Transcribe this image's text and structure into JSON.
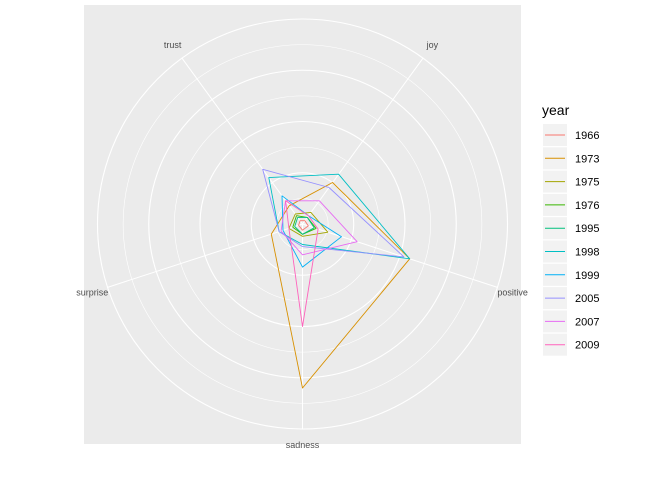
{
  "chart_data": {
    "type": "radar",
    "axes": [
      "joy",
      "positive",
      "sadness",
      "surprise",
      "trust"
    ],
    "rmax": 1,
    "grid": true,
    "legend": {
      "title": "year",
      "position": "right"
    },
    "series": [
      {
        "name": "1966",
        "color": "#F8766D",
        "values": [
          0.02,
          0.03,
          0.03,
          0.02,
          0.02
        ]
      },
      {
        "name": "1973",
        "color": "#D89000",
        "values": [
          0.25,
          0.55,
          0.8,
          0.16,
          0.11
        ]
      },
      {
        "name": "1975",
        "color": "#A3A500",
        "values": [
          0.07,
          0.13,
          0.06,
          0.07,
          0.06
        ]
      },
      {
        "name": "1976",
        "color": "#39B600",
        "values": [
          0.04,
          0.07,
          0.05,
          0.05,
          0.05
        ]
      },
      {
        "name": "1995",
        "color": "#00BF7D",
        "values": [
          0.04,
          0.06,
          0.05,
          0.04,
          0.04
        ]
      },
      {
        "name": "1998",
        "color": "#00BFC4",
        "values": [
          0.3,
          0.55,
          0.1,
          0.12,
          0.28
        ]
      },
      {
        "name": "1999",
        "color": "#00B0F6",
        "values": [
          0.05,
          0.2,
          0.21,
          0.1,
          0.17
        ]
      },
      {
        "name": "2005",
        "color": "#9590FF",
        "values": [
          0.22,
          0.52,
          0.11,
          0.12,
          0.33
        ]
      },
      {
        "name": "2007",
        "color": "#E76BF3",
        "values": [
          0.14,
          0.28,
          0.15,
          0.11,
          0.14
        ]
      },
      {
        "name": "2009",
        "color": "#FF62BC",
        "values": [
          0.05,
          0.08,
          0.5,
          0.07,
          0.14
        ]
      }
    ]
  }
}
